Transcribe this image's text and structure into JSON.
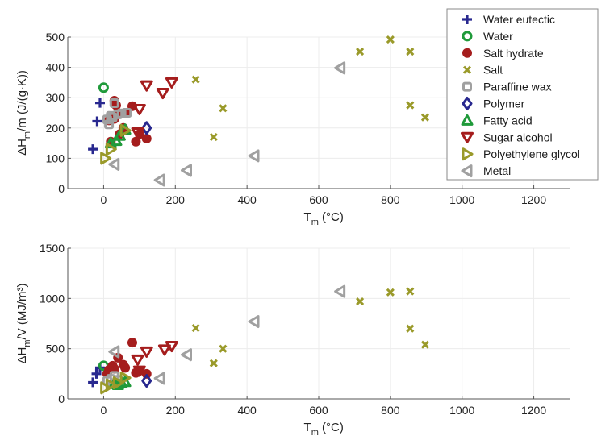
{
  "legend": {
    "placement": "top-right",
    "entries": [
      {
        "name": "Water eutectic",
        "marker": "plus",
        "color": "#28288f"
      },
      {
        "name": "Water",
        "marker": "circle",
        "color": "#1f9a3a"
      },
      {
        "name": "Salt hydrate",
        "marker": "filled-circle",
        "color": "#a51d1d"
      },
      {
        "name": "Salt",
        "marker": "x",
        "color": "#9a9a2a"
      },
      {
        "name": "Paraffine wax",
        "marker": "square",
        "color": "#a0a0a0"
      },
      {
        "name": "Polymer",
        "marker": "diamond",
        "color": "#28288f"
      },
      {
        "name": "Fatty acid",
        "marker": "triangle-up",
        "color": "#1f9a3a"
      },
      {
        "name": "Sugar alcohol",
        "marker": "triangle-down",
        "color": "#a51d1d"
      },
      {
        "name": "Polyethylene glycol",
        "marker": "triangle-right",
        "color": "#9a9a2a"
      },
      {
        "name": "Metal",
        "marker": "triangle-left",
        "color": "#a0a0a0"
      }
    ]
  },
  "chart_data": [
    {
      "type": "scatter",
      "title": "",
      "xlabel": "T_m (°C)",
      "ylabel": "ΔH_m/m (J/(g·K))",
      "xlim": [
        -100,
        1300
      ],
      "ylim": [
        0,
        500
      ],
      "xticks": [
        0,
        200,
        400,
        600,
        800,
        1000,
        1200
      ],
      "yticks": [
        0,
        100,
        200,
        300,
        400,
        500
      ],
      "grid": true,
      "series": [
        {
          "name": "Water eutectic",
          "points": [
            [
              -30,
              130
            ],
            [
              -18,
              222
            ],
            [
              -10,
              283
            ]
          ]
        },
        {
          "name": "Water",
          "points": [
            [
              0,
              333
            ]
          ]
        },
        {
          "name": "Salt hydrate",
          "points": [
            [
              20,
              155
            ],
            [
              30,
              290
            ],
            [
              35,
              275
            ],
            [
              40,
              245
            ],
            [
              45,
              180
            ],
            [
              55,
              200
            ],
            [
              60,
              250
            ],
            [
              80,
              272
            ],
            [
              90,
              155
            ],
            [
              120,
              165
            ],
            [
              30,
              230
            ],
            [
              15,
              225
            ],
            [
              100,
              180
            ]
          ]
        },
        {
          "name": "Salt",
          "points": [
            [
              257,
              360
            ],
            [
              307,
              170
            ],
            [
              333,
              265
            ],
            [
              715,
              452
            ],
            [
              800,
              492
            ],
            [
              855,
              452
            ],
            [
              855,
              275
            ],
            [
              897,
              235
            ]
          ]
        },
        {
          "name": "Paraffine wax",
          "points": [
            [
              10,
              228
            ],
            [
              15,
              212
            ],
            [
              20,
              240
            ],
            [
              30,
              282
            ],
            [
              40,
              245
            ],
            [
              50,
              248
            ],
            [
              65,
              250
            ],
            [
              25,
              235
            ]
          ]
        },
        {
          "name": "Polymer",
          "points": [
            [
              120,
              200
            ]
          ]
        },
        {
          "name": "Fatty acid",
          "points": [
            [
              20,
              150
            ],
            [
              35,
              158
            ],
            [
              45,
              175
            ],
            [
              60,
              195
            ]
          ]
        },
        {
          "name": "Sugar alcohol",
          "points": [
            [
              95,
              185
            ],
            [
              100,
              262
            ],
            [
              120,
              340
            ],
            [
              165,
              315
            ],
            [
              190,
              350
            ]
          ]
        },
        {
          "name": "Polyethylene glycol",
          "points": [
            [
              5,
              100
            ],
            [
              20,
              130
            ],
            [
              60,
              192
            ]
          ]
        },
        {
          "name": "Metal",
          "points": [
            [
              30,
              80
            ],
            [
              157,
              28
            ],
            [
              232,
              60
            ],
            [
              420,
              108
            ],
            [
              660,
              398
            ]
          ]
        }
      ]
    },
    {
      "type": "scatter",
      "title": "",
      "xlabel": "T_m (°C)",
      "ylabel": "ΔH_m/V (MJ/m³)",
      "xlim": [
        -100,
        1300
      ],
      "ylim": [
        0,
        1500
      ],
      "xticks": [
        0,
        200,
        400,
        600,
        800,
        1000,
        1200
      ],
      "yticks": [
        0,
        500,
        1000,
        1500
      ],
      "grid": true,
      "series": [
        {
          "name": "Water eutectic",
          "points": [
            [
              -30,
              165
            ],
            [
              -20,
              250
            ],
            [
              -10,
              310
            ]
          ]
        },
        {
          "name": "Water",
          "points": [
            [
              0,
              330
            ]
          ]
        },
        {
          "name": "Salt hydrate",
          "points": [
            [
              80,
              560
            ],
            [
              40,
              410
            ],
            [
              55,
              340
            ],
            [
              25,
              330
            ],
            [
              10,
              250
            ],
            [
              90,
              260
            ],
            [
              120,
              250
            ],
            [
              100,
              280
            ],
            [
              30,
              300
            ],
            [
              60,
              310
            ],
            [
              15,
              290
            ]
          ]
        },
        {
          "name": "Salt",
          "points": [
            [
              257,
              705
            ],
            [
              307,
              355
            ],
            [
              333,
              500
            ],
            [
              715,
              970
            ],
            [
              800,
              1060
            ],
            [
              855,
              1070
            ],
            [
              855,
              700
            ],
            [
              897,
              540
            ]
          ]
        },
        {
          "name": "Paraffine wax",
          "points": [
            [
              10,
              180
            ],
            [
              20,
              200
            ],
            [
              30,
              230
            ],
            [
              40,
              190
            ]
          ]
        },
        {
          "name": "Polymer",
          "points": [
            [
              120,
              180
            ]
          ]
        },
        {
          "name": "Fatty acid",
          "points": [
            [
              30,
              150
            ],
            [
              50,
              160
            ],
            [
              60,
              170
            ],
            [
              40,
              140
            ]
          ]
        },
        {
          "name": "Sugar alcohol",
          "points": [
            [
              95,
              390
            ],
            [
              120,
              470
            ],
            [
              170,
              490
            ],
            [
              190,
              525
            ],
            [
              100,
              280
            ]
          ]
        },
        {
          "name": "Polyethylene glycol",
          "points": [
            [
              5,
              110
            ],
            [
              20,
              140
            ],
            [
              40,
              160
            ],
            [
              60,
              210
            ]
          ]
        },
        {
          "name": "Metal",
          "points": [
            [
              30,
              470
            ],
            [
              157,
              205
            ],
            [
              232,
              440
            ],
            [
              420,
              770
            ],
            [
              660,
              1070
            ]
          ]
        }
      ]
    }
  ]
}
